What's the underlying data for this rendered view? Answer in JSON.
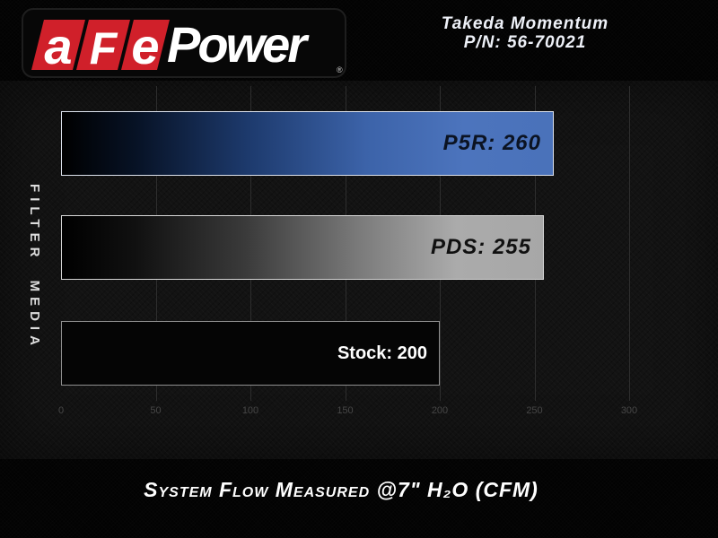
{
  "brand": {
    "letter_a": "a",
    "letter_f": "F",
    "letter_e": "e",
    "power": "Power",
    "registered": "®",
    "accent_red": "#d0202a"
  },
  "header": {
    "product_line1": "Takeda Momentum",
    "product_line2": "P/N: 56-70021"
  },
  "chart_data": {
    "type": "bar",
    "orientation": "horizontal",
    "categories": [
      "P5R",
      "PDS",
      "Stock"
    ],
    "values": [
      260,
      255,
      200
    ],
    "bar_labels": [
      "P5R: 260",
      "PDS: 255",
      "Stock: 200"
    ],
    "label_styles": [
      "techno",
      "techno",
      "plain"
    ],
    "label_colors": [
      "#0b1322",
      "#101010",
      "#ffffff"
    ],
    "fills": [
      "linear-gradient(90deg,#000000 0%,#071225 15%,#1d3a6d 38%,#3c63a9 62%,#4c74bd 82%,#4a72ba 100%)",
      "linear-gradient(90deg,#000000 0%,#101010 15%,#3a3a3a 38%,#7b7b7b 62%,#ababab 82%,#a7a7a7 100%)",
      "#050505"
    ],
    "border_colors": [
      "#dde3ee",
      "#d6d6d6",
      "#8f8f8f"
    ],
    "ylabel": "FILTER MEDIA",
    "xlabel": "System Flow Measured @7\" H₂O (CFM)",
    "xlim": [
      0,
      300
    ],
    "x_ticks": [
      0,
      50,
      100,
      150,
      200,
      250,
      300
    ],
    "grid": "vertical faint gridlines at each tick",
    "bar_value_unit": "CFM"
  }
}
